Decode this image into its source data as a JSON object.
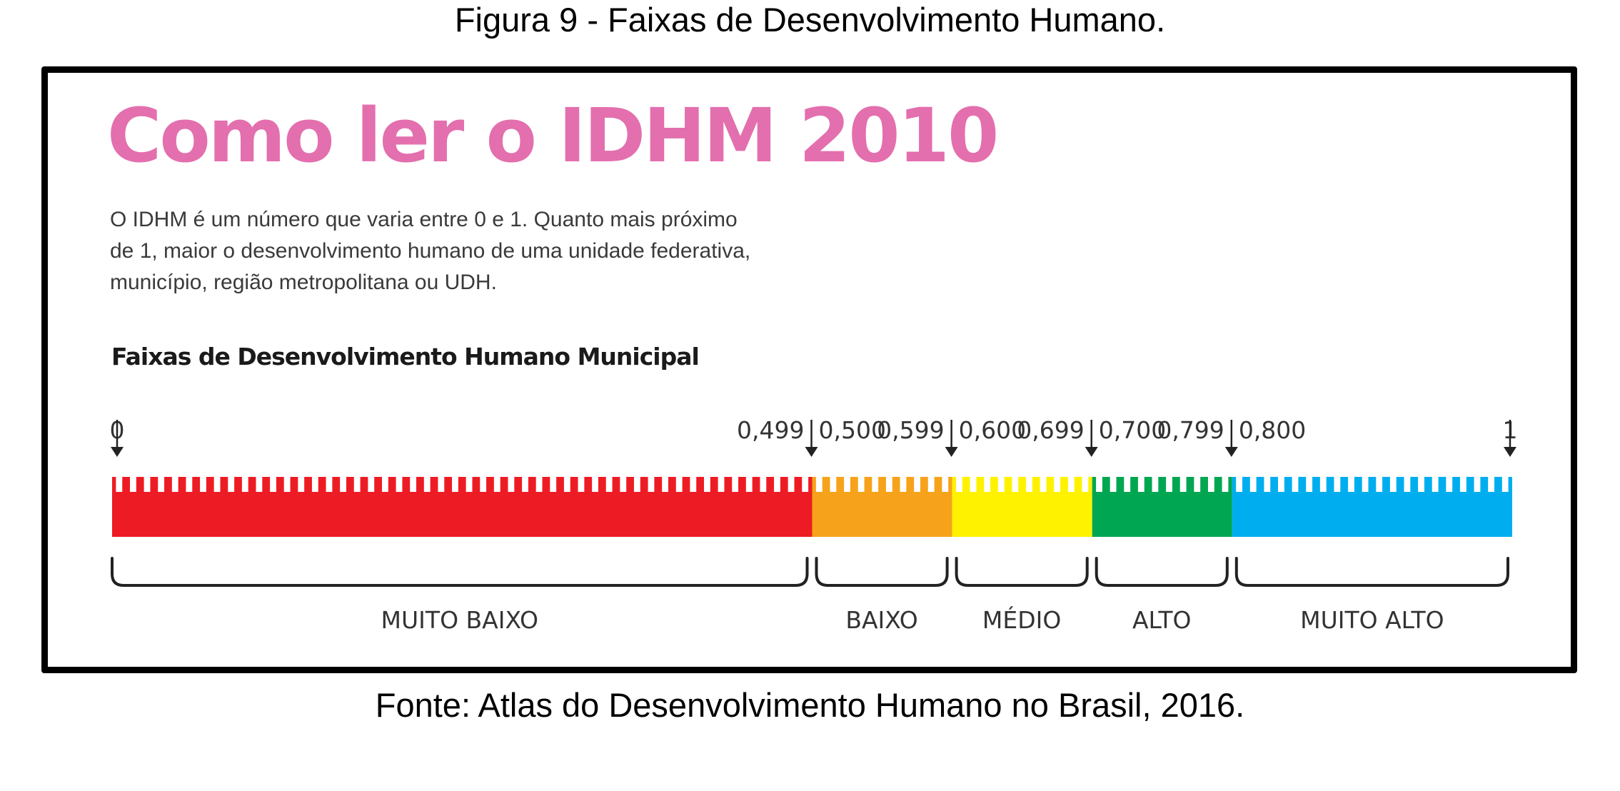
{
  "caption_top": "Figura 9 - Faixas de Desenvolvimento Humano.",
  "headline": "Como ler o IDHM 2010",
  "description": "O IDHM é um número que varia entre 0 e 1. Quanto mais próximo de 1, maior o desenvolvimento humano de uma unidade federativa, município, região metropolitana ou UDH.",
  "subtitle": "Faixas  de Desenvolvimento Humano Municipal",
  "caption_bottom": "Fonte: Atlas do Desenvolvimento Humano no Brasil, 2016.",
  "scale": {
    "min": 0,
    "max": 1,
    "start_label": "0",
    "end_label": "1",
    "bands": [
      {
        "name": "MUITO BAIXO",
        "start": 0,
        "end": 0.499,
        "end_label": "0,499",
        "next_start_label": "0,500",
        "color": "#ed1c24"
      },
      {
        "name": "BAIXO",
        "start": 0.5,
        "end": 0.599,
        "end_label": "0,599",
        "next_start_label": "0,600",
        "color": "#f7a21b"
      },
      {
        "name": "MÉDIO",
        "start": 0.6,
        "end": 0.699,
        "end_label": "0,699",
        "next_start_label": "0,700",
        "color": "#fff200"
      },
      {
        "name": "ALTO",
        "start": 0.7,
        "end": 0.799,
        "end_label": "0,799",
        "next_start_label": "0,800",
        "color": "#00a651"
      },
      {
        "name": "MUITO ALTO",
        "start": 0.8,
        "end": 1,
        "color": "#00aeef"
      }
    ]
  }
}
